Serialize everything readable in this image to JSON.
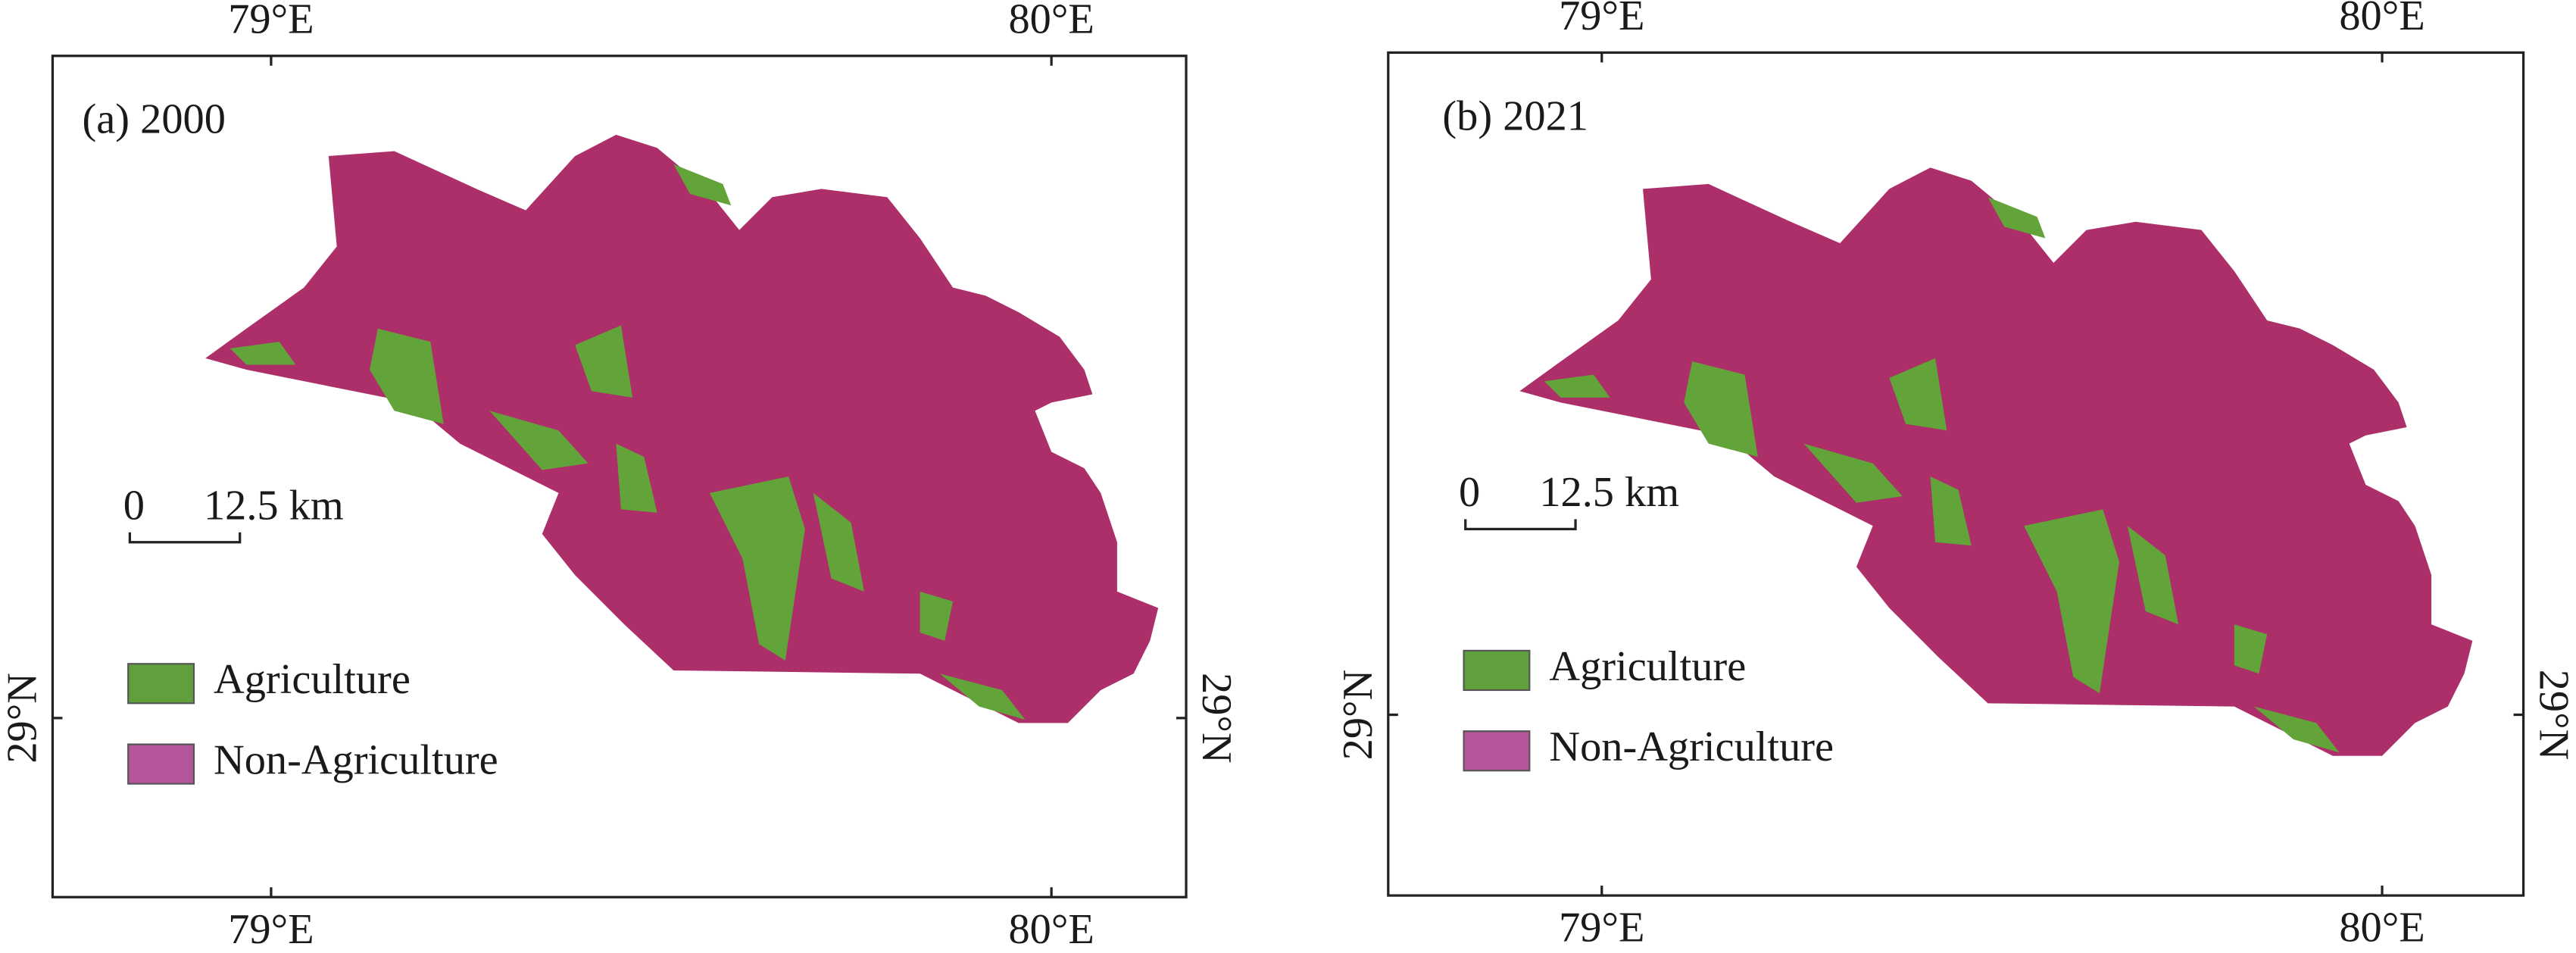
{
  "panels": [
    {
      "label": "(a)  2000",
      "top_ticks": [
        "79°E",
        "80°E"
      ],
      "bottom_ticks": [
        "79°E",
        "80°E"
      ],
      "left_tick": "29°N",
      "right_tick": "29°N",
      "scale_bar": {
        "start": "0",
        "end": "12.5 km"
      },
      "legend": [
        {
          "label": "Agriculture",
          "color": "#5f9f3c"
        },
        {
          "label": "Non-Agriculture",
          "color": "#b5559b"
        }
      ]
    },
    {
      "label": "(b)  2021",
      "top_ticks": [
        "79°E",
        "80°E"
      ],
      "bottom_ticks": [
        "79°E",
        "80°E"
      ],
      "left_tick": "29°N",
      "right_tick": "29°N",
      "scale_bar": {
        "start": "0",
        "end": "12.5 km"
      },
      "legend": [
        {
          "label": "Agriculture",
          "color": "#5f9f3c"
        },
        {
          "label": "Non-Agriculture",
          "color": "#b5559b"
        }
      ]
    }
  ]
}
